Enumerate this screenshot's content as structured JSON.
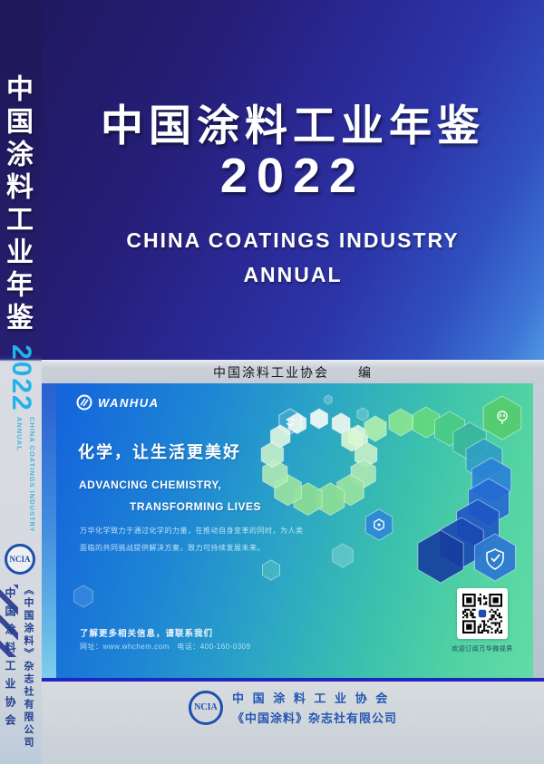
{
  "spine": {
    "title": "中国涂料工业年鉴",
    "year": "2022",
    "subtitle_en_line1": "CHINA COATINGS INDUSTRY",
    "subtitle_en_line2": "ANNUAL",
    "association_logo": "NCIA",
    "association": "中国涂料工业协会",
    "publisher": "《中国涂料》杂志社有限公司"
  },
  "cover": {
    "title": "中国涂料工业年鉴",
    "year": "2022",
    "subtitle_en_line1": "CHINA COATINGS INDUSTRY",
    "subtitle_en_line2": "ANNUAL",
    "editor": "中国涂料工业协会　　编"
  },
  "banner": {
    "brand": "WANHUA",
    "slogan_cn": "化学，让生活更美好",
    "slogan_en_line1": "ADVANCING CHEMISTRY,",
    "slogan_en_line2": "TRANSFORMING LIVES",
    "body_line1": "万华化学致力于通过化学的力量，在推动自身变革的同时，为人类",
    "body_line2": "面临的共同挑战提供解决方案，致力可持续发展未来。",
    "contact_title": "了解更多相关信息，请联系我们",
    "contact_detail": "网址：www.whchem.com　电话：400-160-0309",
    "qr_caption": "欢迎订阅万华微视界"
  },
  "footer": {
    "association_logo": "NCIA",
    "line1": "中 国 涂 料 工 业 协 会",
    "line2": "《中国涂料》杂志社有限公司"
  },
  "colors": {
    "cover_dark_indigo": "#241c66",
    "cover_bright_blue": "#3e76d6",
    "accent_cyan": "#24b2e8",
    "banner_blue": "#1463dc",
    "banner_teal": "#52d3a2",
    "logo_blue": "#1d4fae",
    "divider_blue": "#1f25c0"
  }
}
